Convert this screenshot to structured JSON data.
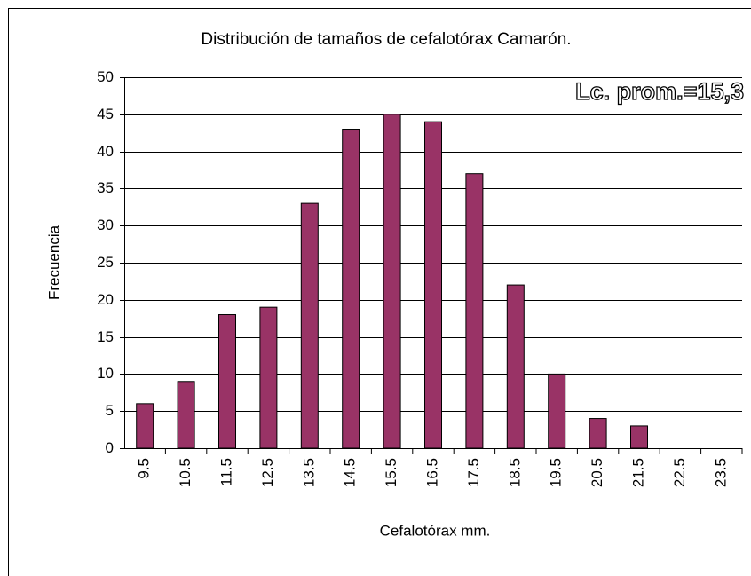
{
  "chart_data": {
    "type": "bar",
    "title": "Distribución de tamaños de cefalotórax Camarón.",
    "annotation": "Lc. prom.=15,3",
    "x_label": "Cefalotórax mm.",
    "y_label": "Frecuencia",
    "categories": [
      "9.5",
      "10.5",
      "11.5",
      "12.5",
      "13.5",
      "14.5",
      "15.5",
      "16.5",
      "17.5",
      "18.5",
      "19.5",
      "20.5",
      "21.5",
      "22.5",
      "23.5"
    ],
    "values": [
      6,
      9,
      18,
      19,
      33,
      43,
      45,
      44,
      37,
      22,
      10,
      4,
      3,
      0,
      0
    ],
    "color": "#993366",
    "ylim": [
      0,
      50
    ],
    "yticks": [
      0,
      5,
      10,
      15,
      20,
      25,
      30,
      35,
      40,
      45,
      50
    ],
    "grid": true
  }
}
